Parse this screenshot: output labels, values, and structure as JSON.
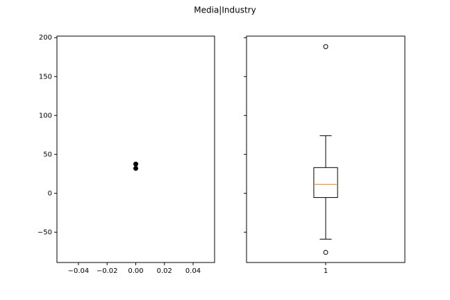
{
  "title": "Media|Industry",
  "chart_data": [
    {
      "type": "scatter",
      "xlim": [
        -0.055,
        0.055
      ],
      "xticks": [
        {
          "value": -0.04,
          "label": "−0.04"
        },
        {
          "value": -0.02,
          "label": "−0.02"
        },
        {
          "value": 0,
          "label": "0.00"
        },
        0.02,
        0.04
      ],
      "ylim": [
        -89,
        202
      ],
      "yticks": [
        {
          "value": -50,
          "label": "−50"
        },
        0,
        50,
        100,
        150,
        200
      ],
      "series": [
        {
          "color": "#000000",
          "x": [
            0,
            0
          ],
          "values": [
            37.5,
            32
          ]
        }
      ]
    },
    {
      "type": "box",
      "categories": [
        "1"
      ],
      "ylim": [
        -89,
        202
      ],
      "yticks": [
        -50,
        0,
        50,
        100,
        150,
        200
      ],
      "median_color": "#ff7f0e",
      "boxes": [
        {
          "whislo": -59,
          "q1": -5.5,
          "med": 11.5,
          "q3": 33,
          "whishi": 74,
          "fliers": [
            188.5,
            -76
          ]
        }
      ]
    }
  ]
}
